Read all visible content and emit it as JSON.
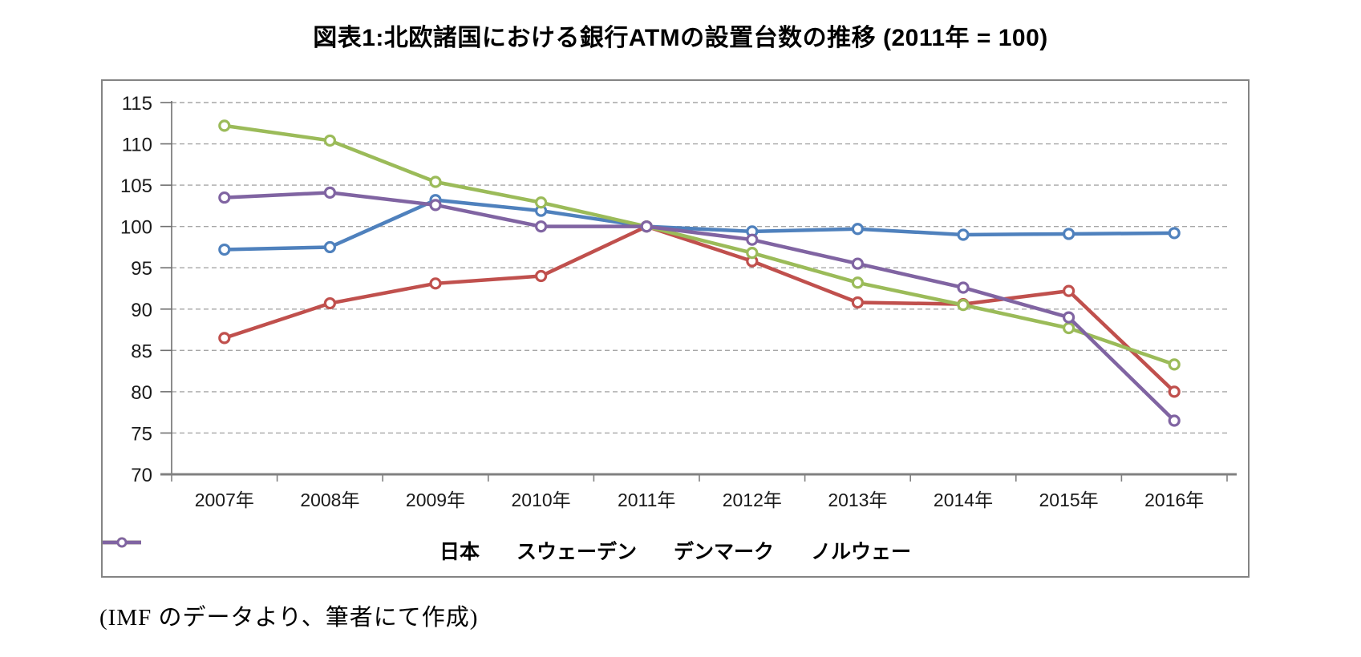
{
  "page": {
    "title": "図表1:北欧諸国における銀行ATMの設置台数の推移 (2011年 = 100)",
    "caption": "(IMF のデータより、筆者にて作成)"
  },
  "chart_data": {
    "type": "line",
    "title": "図表1:北欧諸国における銀行ATMの設置台数の推移 (2011年 = 100)",
    "categories": [
      "2007年",
      "2008年",
      "2009年",
      "2010年",
      "2011年",
      "2012年",
      "2013年",
      "2014年",
      "2015年",
      "2016年"
    ],
    "series": [
      {
        "name": "日本",
        "color": "#4F81BD",
        "values": [
          97.2,
          97.5,
          103.2,
          101.9,
          100,
          99.4,
          99.7,
          99.0,
          99.1,
          99.2
        ]
      },
      {
        "name": "スウェーデン",
        "color": "#C0504D",
        "values": [
          86.5,
          90.7,
          93.1,
          94.0,
          100,
          95.8,
          90.8,
          90.6,
          92.2,
          80.0
        ]
      },
      {
        "name": "デンマーク",
        "color": "#9BBB59",
        "values": [
          112.2,
          110.4,
          105.4,
          102.9,
          100,
          96.8,
          93.2,
          90.5,
          87.7,
          83.3
        ]
      },
      {
        "name": "ノルウェー",
        "color": "#8064A2",
        "values": [
          103.5,
          104.1,
          102.6,
          100.0,
          100,
          98.4,
          95.5,
          92.6,
          89.0,
          76.5
        ]
      }
    ],
    "xlabel": "",
    "ylabel": "",
    "ylim": [
      70,
      115
    ],
    "ytick_step": 5,
    "grid": "horizontal-dashed",
    "legend_position": "bottom",
    "marker": "open-circle",
    "axis_color": "#808080",
    "grid_color": "#A6A6A6",
    "text_color": "#1A1A1A"
  }
}
